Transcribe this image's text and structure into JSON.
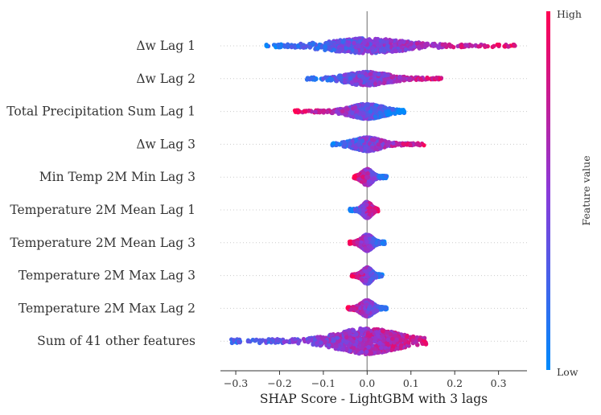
{
  "chart_data": {
    "type": "beeswarm",
    "title": "",
    "xlabel": "SHAP Score - LightGBM with 3 lags",
    "xlim": [
      -0.335,
      0.365
    ],
    "xticks": [
      -0.3,
      -0.2,
      -0.1,
      0.0,
      0.1,
      0.2,
      0.3
    ],
    "xtick_labels": [
      "−0.3",
      "−0.2",
      "−0.1",
      "0.0",
      "0.1",
      "0.2",
      "0.3"
    ],
    "colorbar": {
      "label": "Feature value",
      "high": "High",
      "low": "Low",
      "low_color": "#008afb",
      "high_color": "#ff0052",
      "mid_color": "#8b3ad9"
    },
    "features": [
      {
        "name": "Δw Lag 1",
        "min": -0.23,
        "max": 0.34,
        "spread": 0.55,
        "skew": 0.3
      },
      {
        "name": "Δw Lag 2",
        "min": -0.14,
        "max": 0.17,
        "spread": 0.5,
        "skew": 0.2
      },
      {
        "name": "Total Precipitation Sum Lag 1",
        "min": -0.165,
        "max": 0.085,
        "spread": 0.55,
        "skew": -0.6
      },
      {
        "name": "Δw Lag 3",
        "min": -0.08,
        "max": 0.13,
        "spread": 0.5,
        "skew": 0.3
      },
      {
        "name": "Min Temp 2M Min Lag 3",
        "min": -0.03,
        "max": 0.045,
        "spread": 0.6,
        "skew": -0.6
      },
      {
        "name": "Temperature 2M Mean Lag 1",
        "min": -0.04,
        "max": 0.025,
        "spread": 0.6,
        "skew": 0.6
      },
      {
        "name": "Temperature 2M Mean Lag 3",
        "min": -0.04,
        "max": 0.04,
        "spread": 0.6,
        "skew": -0.4
      },
      {
        "name": "Temperature 2M Max Lag 3",
        "min": -0.035,
        "max": 0.035,
        "spread": 0.6,
        "skew": -0.5
      },
      {
        "name": "Temperature 2M Max Lag 2",
        "min": -0.045,
        "max": 0.045,
        "spread": 0.6,
        "skew": -0.5
      },
      {
        "name": "Sum of 41 other features",
        "min": -0.31,
        "max": 0.135,
        "spread": 0.95,
        "skew": 0.0
      }
    ]
  }
}
